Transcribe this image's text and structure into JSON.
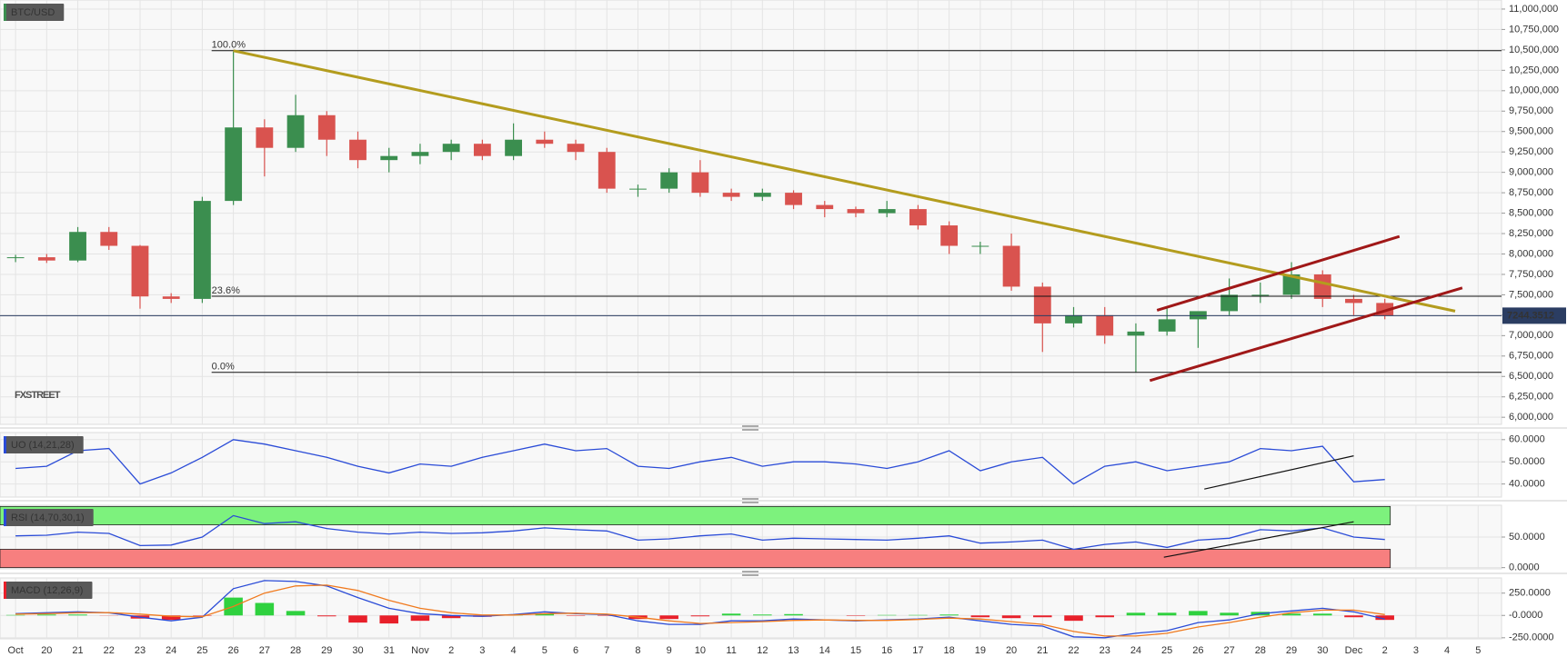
{
  "chart_data": [
    {
      "type": "candlestick",
      "title": "BTC/USD",
      "watermark": "FXSTREET",
      "x": [
        19,
        20,
        21,
        22,
        23,
        24,
        25,
        26,
        27,
        28,
        29,
        30,
        31,
        32,
        33,
        34,
        35,
        36,
        37,
        38,
        39,
        40,
        41,
        42,
        43,
        44,
        45,
        46,
        47,
        48,
        49,
        50,
        51,
        52,
        53,
        54,
        55,
        56,
        57,
        58,
        59,
        60,
        61,
        62,
        63
      ],
      "open": [
        7950,
        7960,
        7920,
        8270,
        8100,
        7480,
        7450,
        8650,
        9550,
        9300,
        9700,
        9400,
        9150,
        9200,
        9250,
        9350,
        9200,
        9400,
        9350,
        9250,
        8800,
        8800,
        9000,
        8750,
        8700,
        8750,
        8600,
        8550,
        8500,
        8550,
        8350,
        8100,
        8100,
        7600,
        7150,
        7250,
        7000,
        7050,
        7200,
        7300,
        7500,
        7500,
        7750,
        7450,
        7400
      ],
      "high": [
        7990,
        8000,
        8330,
        8330,
        8110,
        7520,
        8700,
        10480,
        9650,
        9950,
        9750,
        9500,
        9300,
        9350,
        9400,
        9400,
        9600,
        9500,
        9400,
        9300,
        8850,
        9050,
        9150,
        8800,
        8800,
        8780,
        8650,
        8580,
        8650,
        8600,
        8400,
        8150,
        8250,
        7650,
        7350,
        7350,
        7150,
        7350,
        7250,
        7700,
        7650,
        7900,
        7800,
        7500,
        7450
      ],
      "low": [
        7900,
        7890,
        7900,
        8050,
        7330,
        7400,
        7400,
        8600,
        8950,
        9250,
        9200,
        9050,
        9000,
        9100,
        9150,
        9150,
        9150,
        9300,
        9150,
        8750,
        8700,
        8750,
        8700,
        8650,
        8650,
        8550,
        8450,
        8450,
        8450,
        8300,
        8000,
        8000,
        7550,
        6800,
        7100,
        6900,
        6550,
        7000,
        6850,
        7250,
        7400,
        7450,
        7350,
        7250,
        7200
      ],
      "close": [
        7960,
        7920,
        8270,
        8100,
        7480,
        7450,
        8650,
        9550,
        9300,
        9700,
        9400,
        9150,
        9200,
        9250,
        9350,
        9200,
        9400,
        9350,
        9250,
        8800,
        8800,
        9000,
        8750,
        8700,
        8750,
        8600,
        8550,
        8500,
        8550,
        8350,
        8100,
        8100,
        7600,
        7150,
        7250,
        7000,
        7050,
        7200,
        7300,
        7500,
        7500,
        7750,
        7450,
        7400,
        7244.3512
      ],
      "up_color": "#3b8e4f",
      "down_color": "#d9534f",
      "last_price": 7244.3512,
      "last_price_color": "#2b3d62",
      "levels": [
        {
          "label": "100.0%",
          "value": 10490
        },
        {
          "label": "23.6%",
          "value": 7482
        },
        {
          "label": "0.0%",
          "value": 6550
        }
      ],
      "trendlines": [
        {
          "color": "#b39c1e",
          "points": [
            [
              26,
              10490
            ],
            [
              65.26,
              7300
            ]
          ]
        },
        {
          "color": "#a01818",
          "points": [
            [
              55.68,
              7310
            ],
            [
              63.47,
              8215
            ]
          ]
        },
        {
          "color": "#a01818",
          "points": [
            [
              55.45,
              6450
            ],
            [
              65.49,
              7585
            ]
          ]
        }
      ],
      "xlim": [
        18.5,
        66.75
      ],
      "ylim": [
        5913,
        11111
      ],
      "yticks": [
        {
          "value": 6000,
          "label": "6,000,000"
        },
        {
          "value": 6250,
          "label": "6,250,000"
        },
        {
          "value": 6500,
          "label": "6,500,000"
        },
        {
          "value": 6750,
          "label": "6,750,000"
        },
        {
          "value": 7000,
          "label": "7,000,000"
        },
        {
          "value": 7250,
          "label": "7,250,000"
        },
        {
          "value": 7500,
          "label": "7,500,000"
        },
        {
          "value": 7750,
          "label": "7,750,000"
        },
        {
          "value": 8000,
          "label": "8,000,000"
        },
        {
          "value": 8250,
          "label": "8,250,000"
        },
        {
          "value": 8500,
          "label": "8,500,000"
        },
        {
          "value": 8750,
          "label": "8,750,000"
        },
        {
          "value": 9000,
          "label": "9,000,000"
        },
        {
          "value": 9250,
          "label": "9,250,000"
        },
        {
          "value": 9500,
          "label": "9,500,000"
        },
        {
          "value": 9750,
          "label": "9,750,000"
        },
        {
          "value": 10000,
          "label": "10,000,000"
        },
        {
          "value": 10250,
          "label": "10,250,000"
        },
        {
          "value": 10500,
          "label": "10,500,000"
        },
        {
          "value": 10750,
          "label": "10,750,000"
        },
        {
          "value": 11000,
          "label": "11,000,000"
        }
      ],
      "grid": true
    },
    {
      "type": "line",
      "title": "UO (14,21,28)",
      "x": [
        19,
        20,
        21,
        22,
        23,
        24,
        25,
        26,
        27,
        28,
        29,
        30,
        31,
        32,
        33,
        34,
        35,
        36,
        37,
        38,
        39,
        40,
        41,
        42,
        43,
        44,
        45,
        46,
        47,
        48,
        49,
        50,
        51,
        52,
        53,
        54,
        55,
        56,
        57,
        58,
        59,
        60,
        61,
        62,
        63
      ],
      "series": [
        {
          "color": "#2a4bd7",
          "values": [
            47,
            48,
            55,
            56,
            40,
            45,
            52,
            60,
            58,
            55,
            52,
            48,
            45,
            49,
            48,
            52,
            55,
            58,
            55,
            56,
            48,
            47,
            50,
            52,
            48,
            50,
            50,
            49,
            47,
            50,
            55,
            46,
            50,
            52,
            40,
            48,
            50,
            46,
            48,
            50,
            56,
            55,
            57,
            41,
            42
          ]
        }
      ],
      "trendlines": [
        {
          "color": "#111111",
          "points": [
            [
              57.2,
              37.7
            ],
            [
              62,
              52.7
            ]
          ]
        }
      ],
      "xlim": [
        18.5,
        66.75
      ],
      "ylim": [
        34.1,
        63.2
      ],
      "yticks": [
        {
          "value": 40,
          "label": "40.0000"
        },
        {
          "value": 50,
          "label": "50.0000"
        },
        {
          "value": 60,
          "label": "60.0000"
        }
      ],
      "grid": true
    },
    {
      "type": "line",
      "title": "RSI (14,70,30,1)",
      "x": [
        19,
        20,
        21,
        22,
        23,
        24,
        25,
        26,
        27,
        28,
        29,
        30,
        31,
        32,
        33,
        34,
        35,
        36,
        37,
        38,
        39,
        40,
        41,
        42,
        43,
        44,
        45,
        46,
        47,
        48,
        49,
        50,
        51,
        52,
        53,
        54,
        55,
        56,
        57,
        58,
        59,
        60,
        61,
        62,
        63
      ],
      "series": [
        {
          "color": "#2a4bd7",
          "values": [
            52,
            53,
            58,
            56,
            36,
            37,
            50,
            85,
            72,
            75,
            64,
            58,
            55,
            58,
            56,
            57,
            60,
            65,
            62,
            60,
            45,
            47,
            52,
            55,
            45,
            48,
            47,
            46,
            45,
            48,
            52,
            40,
            42,
            45,
            30,
            38,
            42,
            33,
            45,
            48,
            62,
            60,
            65,
            50,
            46
          ]
        }
      ],
      "bands": [
        {
          "from": 70,
          "to": 100,
          "color": "#7df27d"
        },
        {
          "from": 0,
          "to": 30,
          "color": "#f77f7f"
        }
      ],
      "trendlines": [
        {
          "color": "#111111",
          "points": [
            [
              55.9,
              17
            ],
            [
              62,
              75
            ]
          ]
        }
      ],
      "xlim": [
        18.5,
        66.75
      ],
      "ylim": [
        -2,
        102
      ],
      "yticks": [
        {
          "value": 0,
          "label": "0.0000"
        },
        {
          "value": 50,
          "label": "50.0000"
        }
      ],
      "grid": true
    },
    {
      "type": "macd",
      "title": "MACD (12,26,9)",
      "x": [
        19,
        20,
        21,
        22,
        23,
        24,
        25,
        26,
        27,
        28,
        29,
        30,
        31,
        32,
        33,
        34,
        35,
        36,
        37,
        38,
        39,
        40,
        41,
        42,
        43,
        44,
        45,
        46,
        47,
        48,
        49,
        50,
        51,
        52,
        53,
        54,
        55,
        56,
        57,
        58,
        59,
        60,
        61,
        62,
        63
      ],
      "series": [
        {
          "color": "#2a4bd7",
          "values": [
            20,
            30,
            40,
            30,
            -20,
            -60,
            -20,
            300,
            390,
            380,
            330,
            200,
            80,
            20,
            0,
            -10,
            10,
            40,
            20,
            10,
            -60,
            -100,
            -100,
            -60,
            -60,
            -40,
            -50,
            -60,
            -50,
            -40,
            -20,
            -60,
            -100,
            -120,
            -240,
            -250,
            -200,
            -170,
            -80,
            -50,
            20,
            50,
            80,
            40,
            -40
          ]
        },
        {
          "color": "#f07a1e",
          "values": [
            15,
            20,
            30,
            32,
            15,
            -10,
            -15,
            100,
            250,
            330,
            340,
            280,
            170,
            80,
            30,
            5,
            5,
            20,
            25,
            15,
            -20,
            -60,
            -90,
            -80,
            -70,
            -55,
            -50,
            -55,
            -55,
            -45,
            -30,
            -40,
            -70,
            -100,
            -180,
            -230,
            -230,
            -200,
            -130,
            -80,
            -20,
            30,
            60,
            60,
            10
          ]
        }
      ],
      "histogram": [
        5,
        10,
        10,
        -2,
        -35,
        -50,
        -5,
        200,
        140,
        50,
        -10,
        -80,
        -90,
        -60,
        -30,
        -15,
        5,
        20,
        -5,
        -5,
        -40,
        -40,
        -10,
        20,
        10,
        15,
        0,
        -5,
        5,
        5,
        10,
        -20,
        -30,
        -20,
        -60,
        -20,
        30,
        30,
        50,
        30,
        40,
        20,
        20,
        -20,
        -50
      ],
      "histogram_colors": [
        "#2fd13f",
        "#e8202a"
      ],
      "xlim": [
        18.5,
        66.75
      ],
      "ylim": [
        -262,
        420
      ],
      "yticks": [
        {
          "value": 250,
          "label": "250.0000"
        },
        {
          "value": 0,
          "label": "-0.0000"
        },
        {
          "value": -250,
          "label": "-250.0000"
        }
      ],
      "xticks": [
        {
          "value": 19,
          "label": "Oct"
        },
        20,
        21,
        22,
        23,
        24,
        25,
        26,
        27,
        28,
        29,
        30,
        31,
        {
          "value": 32,
          "label": "Nov"
        },
        {
          "value": 33,
          "label": "2"
        },
        {
          "value": 34,
          "label": "3"
        },
        {
          "value": 35,
          "label": "4"
        },
        {
          "value": 36,
          "label": "5"
        },
        {
          "value": 37,
          "label": "6"
        },
        {
          "value": 38,
          "label": "7"
        },
        {
          "value": 39,
          "label": "8"
        },
        {
          "value": 40,
          "label": "9"
        },
        {
          "value": 41,
          "label": "10"
        },
        {
          "value": 42,
          "label": "11"
        },
        {
          "value": 43,
          "label": "12"
        },
        {
          "value": 44,
          "label": "13"
        },
        {
          "value": 45,
          "label": "14"
        },
        {
          "value": 46,
          "label": "15"
        },
        {
          "value": 47,
          "label": "16"
        },
        {
          "value": 48,
          "label": "17"
        },
        {
          "value": 49,
          "label": "18"
        },
        {
          "value": 50,
          "label": "19"
        },
        {
          "value": 51,
          "label": "20"
        },
        {
          "value": 52,
          "label": "21"
        },
        {
          "value": 53,
          "label": "22"
        },
        {
          "value": 54,
          "label": "23"
        },
        {
          "value": 55,
          "label": "24"
        },
        {
          "value": 56,
          "label": "25"
        },
        {
          "value": 57,
          "label": "26"
        },
        {
          "value": 58,
          "label": "27"
        },
        {
          "value": 59,
          "label": "28"
        },
        {
          "value": 60,
          "label": "29"
        },
        {
          "value": 61,
          "label": "30"
        },
        {
          "value": 62,
          "label": "Dec"
        },
        {
          "value": 63,
          "label": "2"
        },
        {
          "value": 64,
          "label": "3"
        },
        {
          "value": 65,
          "label": "4"
        },
        {
          "value": 66,
          "label": "5"
        }
      ],
      "grid": true
    }
  ]
}
